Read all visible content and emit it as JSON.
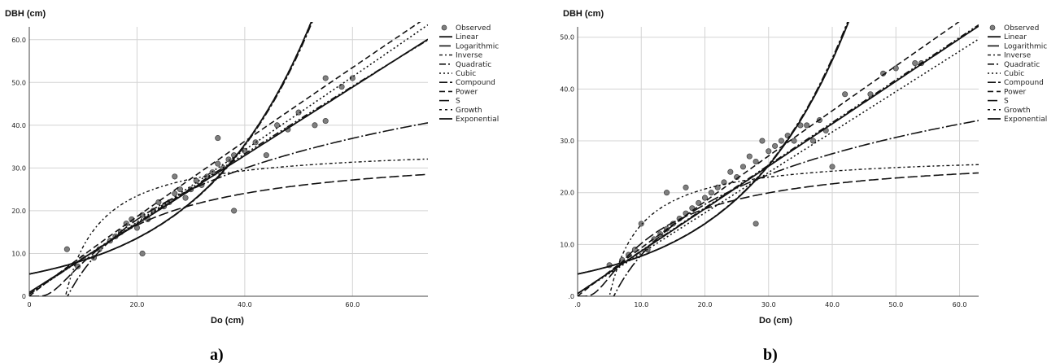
{
  "panels": [
    {
      "label": "a)"
    },
    {
      "label": "b)"
    }
  ],
  "legend_entries": [
    "Observed",
    "Linear",
    "Logarithmic",
    "Inverse",
    "Quadratic",
    "Cubic",
    "Compound",
    "Power",
    "S",
    "Growth",
    "Exponential"
  ],
  "colors": {
    "points": "#7f7f7f",
    "point_edge": "#3f3f3f",
    "lines": "#111111",
    "grid": "#d3d3d3"
  },
  "chart_data": [
    {
      "type": "scatter",
      "xlabel": "Do (cm)",
      "ylabel": "DBH (cm)",
      "xlim": [
        0,
        74
      ],
      "ylim": [
        0,
        63
      ],
      "x_ticks": [
        0,
        20,
        40,
        60
      ],
      "x_tick_labels": [
        "0",
        "20.0",
        "40.0",
        "60.0"
      ],
      "y_ticks": [
        0,
        10,
        20,
        30,
        40,
        50,
        60
      ],
      "y_tick_labels": [
        "0",
        "10.0",
        "20.0",
        "30.0",
        "40.0",
        "50.0",
        "60.0"
      ],
      "grid": true,
      "legend_position": "right",
      "observed_sample": [
        [
          7,
          11
        ],
        [
          9,
          7
        ],
        [
          10,
          9
        ],
        [
          12,
          9
        ],
        [
          13,
          11
        ],
        [
          15,
          13
        ],
        [
          16,
          14
        ],
        [
          17,
          15
        ],
        [
          18,
          17
        ],
        [
          19,
          18
        ],
        [
          20,
          16
        ],
        [
          21,
          19
        ],
        [
          21,
          10
        ],
        [
          22,
          18
        ],
        [
          23,
          20
        ],
        [
          24,
          22
        ],
        [
          25,
          21
        ],
        [
          26,
          22
        ],
        [
          27,
          24
        ],
        [
          27,
          28
        ],
        [
          28,
          25
        ],
        [
          29,
          23
        ],
        [
          30,
          25
        ],
        [
          31,
          27
        ],
        [
          32,
          26
        ],
        [
          33,
          28
        ],
        [
          34,
          29
        ],
        [
          35,
          31
        ],
        [
          35,
          37
        ],
        [
          36,
          30
        ],
        [
          37,
          32
        ],
        [
          38,
          20
        ],
        [
          38,
          33
        ],
        [
          40,
          34
        ],
        [
          42,
          36
        ],
        [
          44,
          33
        ],
        [
          46,
          40
        ],
        [
          48,
          39
        ],
        [
          50,
          43
        ],
        [
          53,
          40
        ],
        [
          55,
          51
        ],
        [
          55,
          41
        ],
        [
          58,
          49
        ],
        [
          60,
          51
        ]
      ],
      "series": [
        {
          "name": "Linear",
          "slope": 0.8,
          "intercept": 0.9
        },
        {
          "name": "Logarithmic",
          "model": "a + b ln(x)",
          "a": -33.9,
          "b": 17.3
        },
        {
          "name": "Inverse",
          "model": "a + b / x",
          "a": 35.3,
          "b": -237
        },
        {
          "name": "Quadratic",
          "model": "a + b x + c x^2",
          "a": 0.5,
          "b": 0.84,
          "c": -0.0005
        },
        {
          "name": "Cubic",
          "model": "a + b x + c x^2 + d x^3",
          "a": 0.5,
          "b": 0.84,
          "c": 0.0,
          "d": 2e-06
        },
        {
          "name": "Compound",
          "model": "a * b^x",
          "a": 5.2,
          "b": 1.049
        },
        {
          "name": "Power",
          "model": "a * x^b",
          "a": 1.05,
          "b": 0.96
        },
        {
          "name": "S",
          "model": "exp(a + b / x)",
          "a": 3.55,
          "b": -14.8
        },
        {
          "name": "Growth",
          "model": "exp(a + b x)",
          "a": 1.65,
          "b": 0.048
        },
        {
          "name": "Exponential",
          "model": "a * exp(b x)",
          "a": 5.2,
          "b": 0.048
        }
      ]
    },
    {
      "type": "scatter",
      "xlabel": "Do (cm)",
      "ylabel": "DBH (cm)",
      "xlim": [
        0,
        63
      ],
      "ylim": [
        0,
        52
      ],
      "x_ticks": [
        0,
        10,
        20,
        30,
        40,
        50,
        60
      ],
      "x_tick_labels": [
        ".0",
        "10.0",
        "20.0",
        "30.0",
        "40.0",
        "50.0",
        "60.0"
      ],
      "y_ticks": [
        0,
        10,
        20,
        30,
        40,
        50
      ],
      "y_tick_labels": [
        ".0",
        "10.0",
        "20.0",
        "30.0",
        "40.0",
        "50.0"
      ],
      "grid": true,
      "legend_position": "right",
      "observed_sample": [
        [
          5,
          6
        ],
        [
          7,
          7
        ],
        [
          8,
          8
        ],
        [
          9,
          9
        ],
        [
          10,
          14
        ],
        [
          11,
          9
        ],
        [
          12,
          11
        ],
        [
          13,
          12
        ],
        [
          14,
          13
        ],
        [
          14,
          20
        ],
        [
          15,
          14
        ],
        [
          16,
          15
        ],
        [
          17,
          16
        ],
        [
          17,
          21
        ],
        [
          18,
          17
        ],
        [
          19,
          18
        ],
        [
          20,
          19
        ],
        [
          21,
          20
        ],
        [
          22,
          21
        ],
        [
          23,
          22
        ],
        [
          24,
          24
        ],
        [
          25,
          23
        ],
        [
          26,
          25
        ],
        [
          27,
          27
        ],
        [
          28,
          26
        ],
        [
          28,
          14
        ],
        [
          29,
          30
        ],
        [
          30,
          28
        ],
        [
          31,
          29
        ],
        [
          32,
          30
        ],
        [
          33,
          31
        ],
        [
          34,
          30
        ],
        [
          35,
          33
        ],
        [
          36,
          33
        ],
        [
          37,
          30
        ],
        [
          38,
          34
        ],
        [
          39,
          32
        ],
        [
          40,
          25
        ],
        [
          42,
          39
        ],
        [
          46,
          39
        ],
        [
          48,
          43
        ],
        [
          50,
          44
        ],
        [
          53,
          45
        ],
        [
          54,
          45
        ]
      ],
      "series": [
        {
          "name": "Linear",
          "slope": 0.82,
          "intercept": 0.5
        },
        {
          "name": "Logarithmic",
          "model": "a + b ln(x)",
          "a": -24.5,
          "b": 14.1
        },
        {
          "name": "Inverse",
          "model": "a + b / x",
          "a": 27.6,
          "b": -138
        },
        {
          "name": "Quadratic",
          "model": "a + b x + c x^2",
          "a": 0.5,
          "b": 0.83,
          "c": -0.0001
        },
        {
          "name": "Cubic",
          "model": "a + b x + c x^2 + d x^3",
          "a": 0.5,
          "b": 0.78,
          "c": 0.0,
          "d": 0.0
        },
        {
          "name": "Compound",
          "model": "a * b^x",
          "a": 4.3,
          "b": 1.061
        },
        {
          "name": "Power",
          "model": "a * x^b",
          "a": 1.0,
          "b": 0.97
        },
        {
          "name": "S",
          "model": "exp(a + b / x)",
          "a": 3.33,
          "b": -10.1
        },
        {
          "name": "Growth",
          "model": "exp(a + b x)",
          "a": 1.46,
          "b": 0.059
        },
        {
          "name": "Exponential",
          "model": "a * exp(b x)",
          "a": 4.3,
          "b": 0.059
        }
      ]
    }
  ]
}
